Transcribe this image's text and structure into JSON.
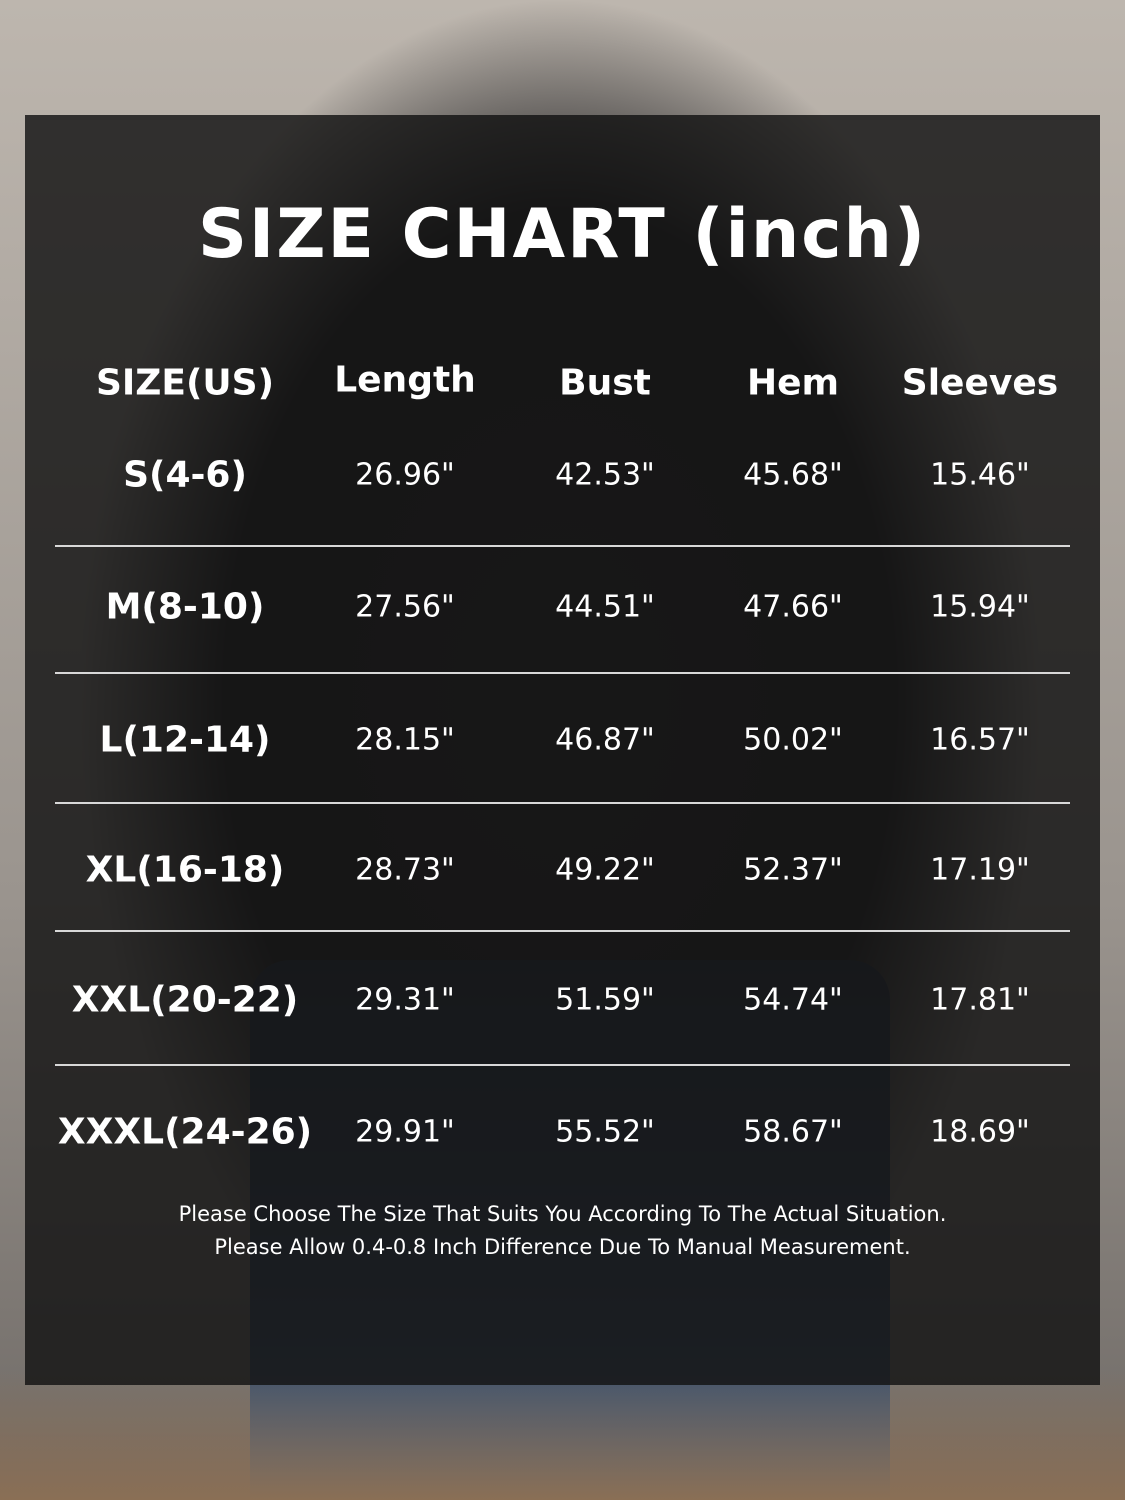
{
  "title": "SIZE CHART (inch)",
  "headers": [
    "SIZE(US)",
    "Length",
    "Bust",
    "Hem",
    "Sleeves"
  ],
  "rows": [
    [
      "S(4-6)",
      "26.96\"",
      "42.53\"",
      "45.68\"",
      "15.46\""
    ],
    [
      "M(8-10)",
      "27.56\"",
      "44.51\"",
      "47.66\"",
      "15.94\""
    ],
    [
      "L(12-14)",
      "28.15\"",
      "46.87\"",
      "50.02\"",
      "16.57\""
    ],
    [
      "XL(16-18)",
      "28.73\"",
      "49.22\"",
      "52.37\"",
      "17.19\""
    ],
    [
      "XXL(20-22)",
      "29.31\"",
      "51.59\"",
      "54.74\"",
      "17.81\""
    ],
    [
      "XXXL(24-26)",
      "29.91\"",
      "55.52\"",
      "58.67\"",
      "18.69\""
    ]
  ],
  "notes": [
    "Please Choose The Size That Suits You According To The Actual Situation.",
    "Please Allow 0.4-0.8 Inch Difference Due To Manual Measurement."
  ],
  "colors": {
    "panel": "#121212",
    "text": "#ffffff",
    "divider": "#d8d8d8"
  }
}
